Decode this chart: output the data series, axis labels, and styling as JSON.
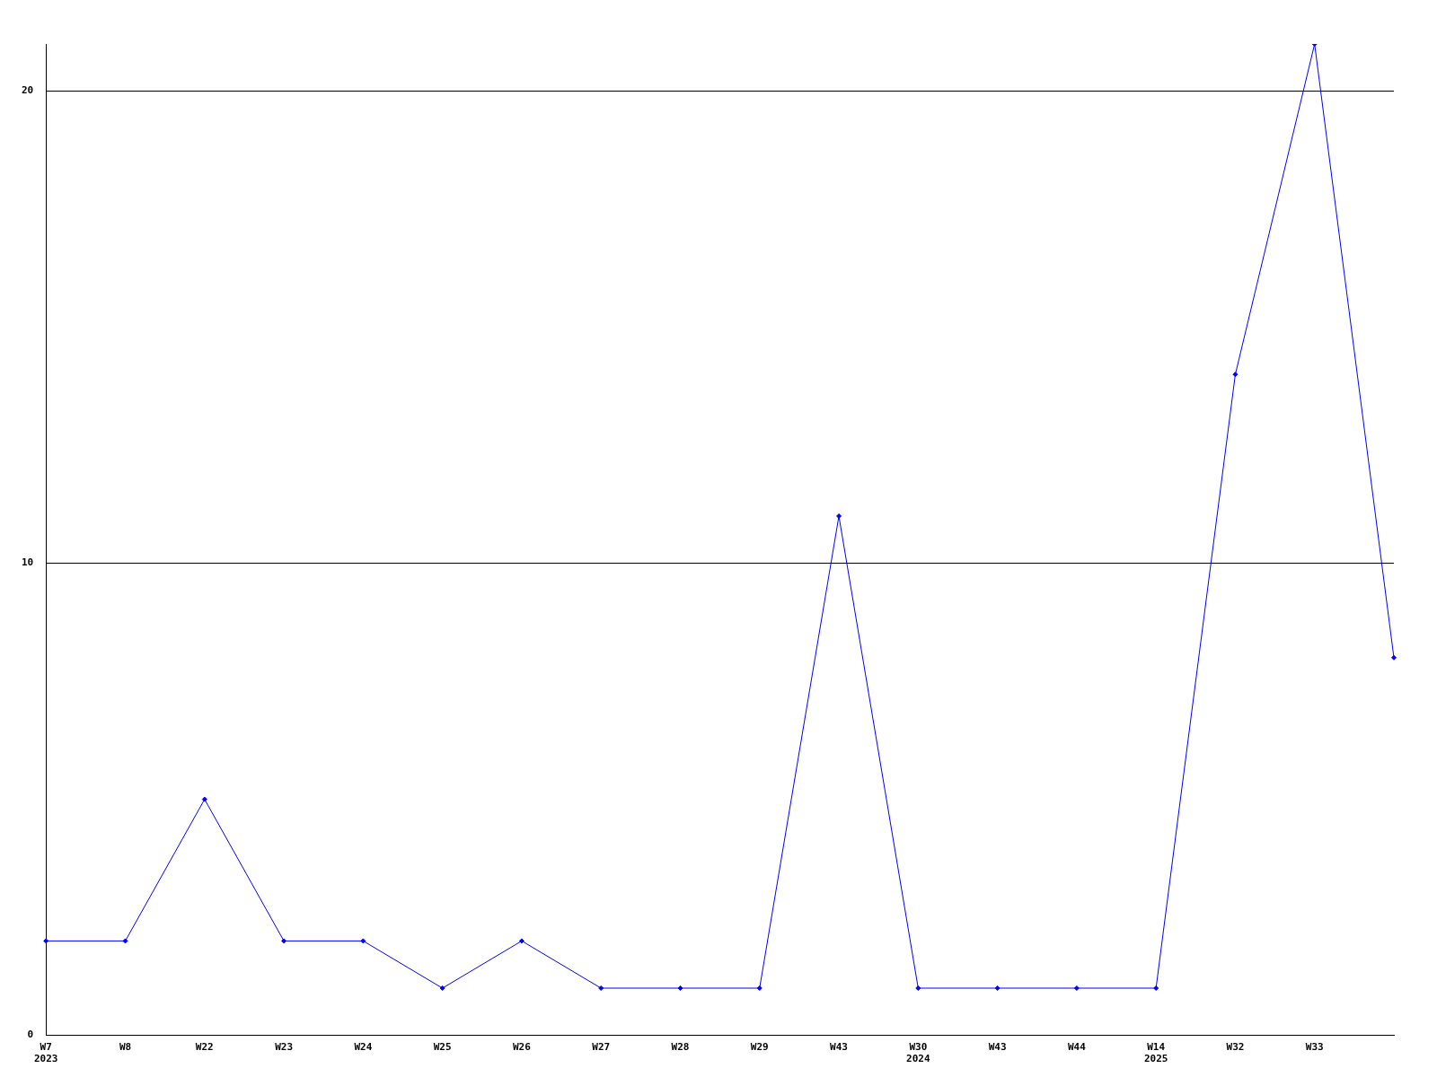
{
  "chart_data": {
    "type": "line",
    "categories": [
      "W7\n2023",
      "W8",
      "W22",
      "W23",
      "W24",
      "W25",
      "W26",
      "W27",
      "W28",
      "W29",
      "W43",
      "W30\n2024",
      "W43",
      "W44",
      "W14\n2025",
      "W32",
      "W33",
      null
    ],
    "series": [
      {
        "color": "#0000ff",
        "values": [
          2,
          2,
          5,
          2,
          2,
          1,
          2,
          1,
          1,
          1,
          11,
          1,
          1,
          1,
          1,
          14,
          21,
          8
        ]
      }
    ],
    "ylim": [
      0,
      21
    ],
    "yticks": [
      0,
      10,
      20
    ],
    "grid": "y",
    "legend": false,
    "marker": "diamond",
    "line_style": "solid"
  }
}
